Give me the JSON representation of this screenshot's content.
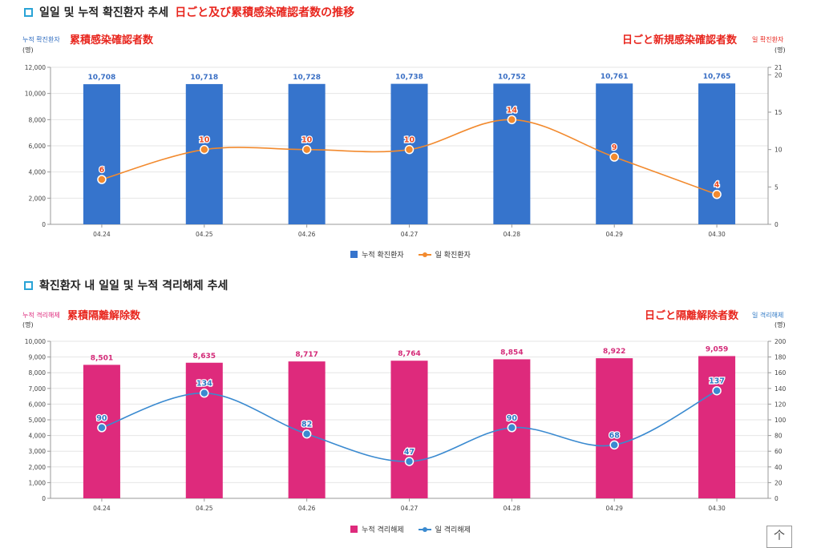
{
  "section1": {
    "title": "일일 및 누적 확진환자 추세",
    "title_jp": "日ごと及び累積感染確認者数の推移",
    "left_axis_tag": "누적 확진환자",
    "left_axis_jp": "累積感染確認者数",
    "right_axis_tag": "일 확진환자",
    "right_axis_jp": "日ごと新規感染確認者数",
    "unit_left": "(명)",
    "unit_right": "(명)",
    "legend_bar": "누적 확진환자",
    "legend_line": "일 확진환자"
  },
  "section2": {
    "title": "확진환자 내 일일 및 누적 격리해제 추세",
    "left_axis_tag": "누적 격리해제",
    "left_axis_jp": "累積隔離解除数",
    "right_axis_tag": "일 격리해제",
    "right_axis_jp": "日ごと隔離解除者数",
    "unit_left": "(명)",
    "unit_right": "(명)",
    "legend_bar": "누적 격리해제",
    "legend_line": "일 격리해제"
  },
  "top_button": "个",
  "chart_data": [
    {
      "type": "bar",
      "categories": [
        "04.24",
        "04.25",
        "04.26",
        "04.27",
        "04.28",
        "04.29",
        "04.30"
      ],
      "series": [
        {
          "name": "누적 확진환자",
          "type": "bar",
          "axis": "left",
          "values": [
            10708,
            10718,
            10728,
            10738,
            10752,
            10761,
            10765
          ],
          "labels": [
            "10,708",
            "10,718",
            "10,728",
            "10,738",
            "10,752",
            "10,761",
            "10,765"
          ]
        },
        {
          "name": "일 확진환자",
          "type": "line",
          "axis": "right",
          "values": [
            6,
            10,
            10,
            10,
            14,
            9,
            4
          ],
          "labels": [
            "6",
            "10",
            "10",
            "10",
            "14",
            "9",
            "4"
          ]
        }
      ],
      "ylim_left": [
        0,
        12000
      ],
      "yticks_left": [
        "0",
        "2,000",
        "4,000",
        "6,000",
        "8,000",
        "10,000",
        "12,000"
      ],
      "ylim_right": [
        0,
        21
      ],
      "yticks_right": [
        "0",
        "5",
        "10",
        "15",
        "20",
        "21"
      ],
      "colors": {
        "bar": "#3674cc",
        "line": "#f28a2e",
        "bar_label": "#3a6fc4",
        "line_label": "#e84a22"
      },
      "grid": true,
      "legend": "bottom-center"
    },
    {
      "type": "bar",
      "categories": [
        "04.24",
        "04.25",
        "04.26",
        "04.27",
        "04.28",
        "04.29",
        "04.30"
      ],
      "series": [
        {
          "name": "누적 격리해제",
          "type": "bar",
          "axis": "left",
          "values": [
            8501,
            8635,
            8717,
            8764,
            8854,
            8922,
            9059
          ],
          "labels": [
            "8,501",
            "8,635",
            "8,717",
            "8,764",
            "8,854",
            "8,922",
            "9,059"
          ]
        },
        {
          "name": "일 격리해제",
          "type": "line",
          "axis": "right",
          "values": [
            90,
            134,
            82,
            47,
            90,
            68,
            137
          ],
          "labels": [
            "90",
            "134",
            "82",
            "47",
            "90",
            "68",
            "137"
          ]
        }
      ],
      "ylim_left": [
        0,
        10000
      ],
      "yticks_left": [
        "0",
        "1,000",
        "2,000",
        "3,000",
        "4,000",
        "5,000",
        "6,000",
        "7,000",
        "8,000",
        "9,000",
        "10,000"
      ],
      "ylim_right": [
        0,
        200
      ],
      "yticks_right": [
        "0",
        "20",
        "40",
        "60",
        "80",
        "100",
        "120",
        "140",
        "160",
        "180",
        "200"
      ],
      "colors": {
        "bar": "#de2a7c",
        "line": "#3a8ad0",
        "bar_label": "#d42a78",
        "line_label": "#2f78c4"
      },
      "grid": true,
      "legend": "bottom-center"
    }
  ]
}
